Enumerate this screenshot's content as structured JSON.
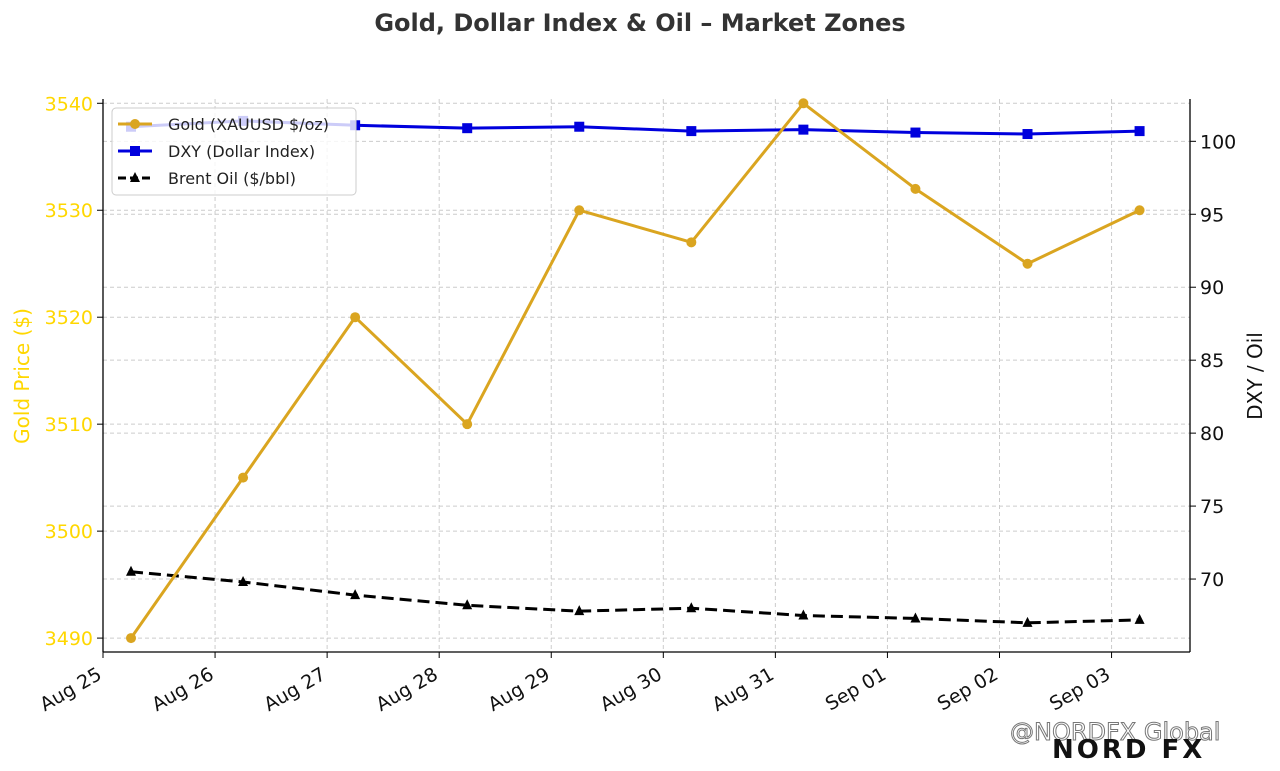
{
  "chart_data": {
    "type": "line",
    "title": "Gold, Dollar Index & Oil – Market Zones",
    "xlabel": "",
    "ylabel_left": "Gold Price ($)",
    "ylabel_right": "DXY / Oil",
    "x_ticks": [
      "Aug 25",
      "Aug 26",
      "Aug 27",
      "Aug 28",
      "Aug 29",
      "Aug 30",
      "Aug 31",
      "Sep 01",
      "Sep 02",
      "Sep 03"
    ],
    "x_range": [
      0,
      9.7
    ],
    "x_point_offset": 0.25,
    "y_left": {
      "ticks": [
        3490,
        3500,
        3510,
        3520,
        3530,
        3540
      ],
      "range": [
        3488.7,
        3540.4
      ]
    },
    "y_right": {
      "ticks": [
        70,
        75,
        80,
        85,
        90,
        95,
        100
      ],
      "range": [
        65.0,
        102.9
      ]
    },
    "grid": true,
    "legend_position": "top-left",
    "series": [
      {
        "name": "Gold (XAUUSD $/oz)",
        "axis": "left",
        "color": "#DAA520",
        "marker": "circle",
        "dash": "solid",
        "values": [
          3490,
          3505,
          3520,
          3510,
          3530,
          3527,
          3540,
          3532,
          3525,
          3530
        ]
      },
      {
        "name": "DXY (Dollar Index)",
        "axis": "right",
        "color": "#0000DD",
        "marker": "square",
        "dash": "solid",
        "values": [
          101.0,
          101.4,
          101.1,
          100.9,
          101.0,
          100.7,
          100.8,
          100.6,
          100.5,
          100.7
        ]
      },
      {
        "name": "Brent Oil ($/bbl)",
        "axis": "right",
        "color": "#000000",
        "marker": "triangle",
        "dash": "dashed",
        "values": [
          70.5,
          69.8,
          68.9,
          68.2,
          67.8,
          68.0,
          67.5,
          67.3,
          67.0,
          67.2
        ]
      }
    ]
  },
  "colors": {
    "gold_axis": "#FFD700",
    "grid": "#cccccc"
  },
  "watermark": {
    "handle": "@NORDFX Global",
    "logo": "NORD FX"
  }
}
